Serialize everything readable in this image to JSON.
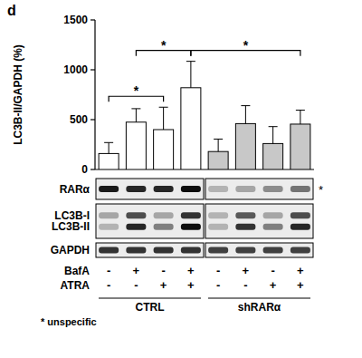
{
  "panel_label": "d",
  "chart_data": {
    "type": "bar",
    "y_label": "LC3B-II/GAPDH (%)",
    "categories": [
      null,
      null,
      null,
      null,
      null,
      null,
      null,
      null
    ],
    "values": [
      160,
      475,
      400,
      820,
      180,
      460,
      260,
      455
    ],
    "errors": [
      110,
      135,
      225,
      265,
      125,
      180,
      170,
      140
    ],
    "colors": [
      "#ffffff",
      "#ffffff",
      "#ffffff",
      "#ffffff",
      "#c8c8c8",
      "#c8c8c8",
      "#c8c8c8",
      "#c8c8c8"
    ],
    "ylim": [
      0,
      1500
    ],
    "yticks": [
      0,
      500,
      1000,
      1500
    ],
    "comparisons": [
      {
        "from": 0,
        "to": 2,
        "label": "*"
      },
      {
        "from": 1,
        "to": 3,
        "label": "*"
      },
      {
        "from": 3,
        "to": 7,
        "label": "*"
      }
    ]
  },
  "blots": [
    {
      "labels": [
        "RARα"
      ],
      "marker": "*",
      "bands": [
        [
          0.9,
          0.85,
          0.85,
          0.95,
          0.3,
          0.35,
          0.45,
          0.55
        ]
      ]
    },
    {
      "labels": [
        "LC3B-I",
        "LC3B-II"
      ],
      "bands": [
        [
          0.35,
          0.7,
          0.35,
          0.8,
          0.3,
          0.65,
          0.35,
          0.7
        ],
        [
          0.3,
          0.85,
          0.5,
          0.95,
          0.3,
          0.8,
          0.5,
          0.85
        ]
      ]
    },
    {
      "labels": [
        "GAPDH"
      ],
      "bands": [
        [
          0.8,
          0.8,
          0.8,
          0.8,
          0.75,
          0.75,
          0.75,
          0.75
        ]
      ]
    }
  ],
  "conditions": [
    {
      "label": "BafA",
      "values": [
        "-",
        "+",
        "-",
        "+",
        "-",
        "+",
        "-",
        "+"
      ]
    },
    {
      "label": "ATRA",
      "values": [
        "-",
        "-",
        "+",
        "+",
        "-",
        "-",
        "+",
        "+"
      ]
    }
  ],
  "groups": [
    {
      "label": "CTRL",
      "size": 4
    },
    {
      "label": "shRARα",
      "size": 4
    }
  ],
  "footnote": "* unspecific"
}
